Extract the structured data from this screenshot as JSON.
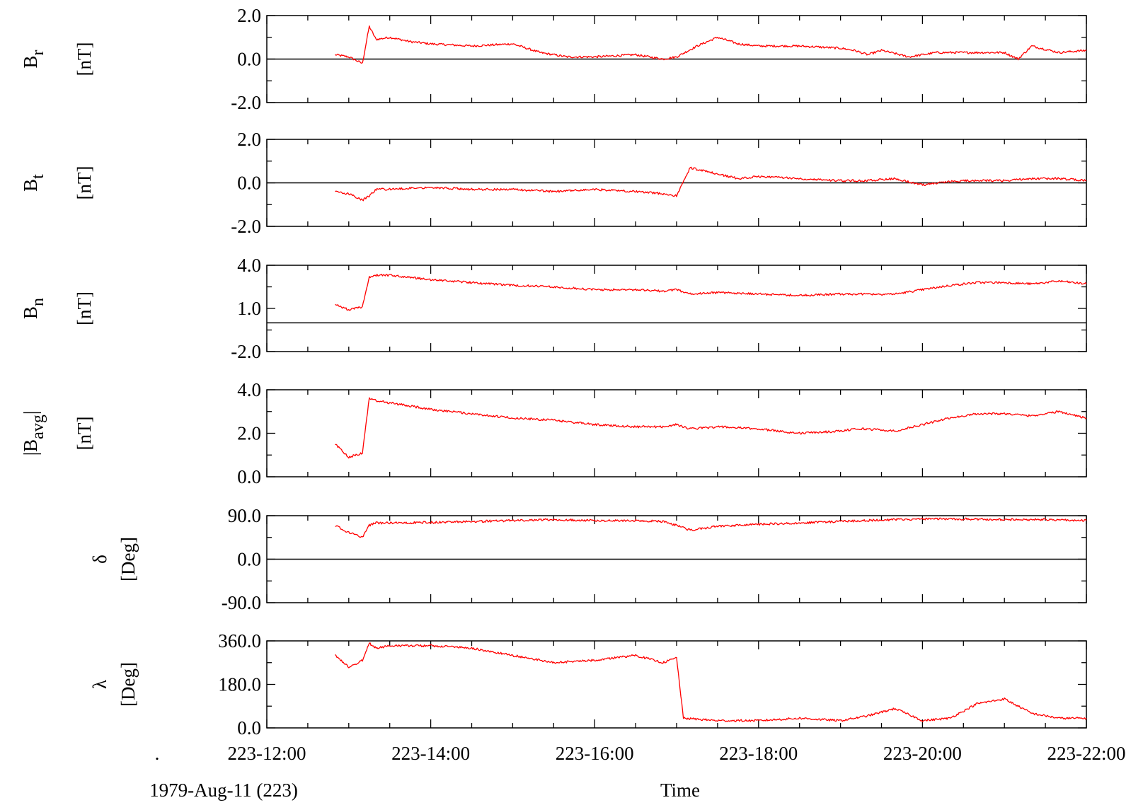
{
  "chart_data": {
    "type": "line",
    "trace_color": "#ff0000",
    "x_axis": {
      "label": "Time",
      "range": [
        "223-12:00",
        "223-22:00"
      ],
      "ticks": [
        "223-12:00",
        "223-14:00",
        "223-16:00",
        "223-18:00",
        "223-20:00",
        "223-22:00"
      ],
      "date_label": "1979-Aug-11 (223)",
      "marker": "."
    },
    "panels": [
      {
        "name": "Br",
        "label_main": "B",
        "label_sub": "r",
        "label_pre": "",
        "label_post": "",
        "unit": "[nT]",
        "ylim": [
          -2.0,
          2.0
        ],
        "ticks": [
          "2.0",
          "0.0",
          "-2.0"
        ],
        "zero_line": 0.0,
        "series": [
          {
            "x": [
              "223-12:50",
              "223-13:00",
              "223-13:10",
              "223-13:15",
              "223-13:20",
              "223-13:30",
              "223-13:45",
              "223-14:00",
              "223-14:30",
              "223-15:00",
              "223-15:20",
              "223-15:40",
              "223-16:00",
              "223-16:30",
              "223-16:50",
              "223-17:00",
              "223-17:15",
              "223-17:30",
              "223-17:45",
              "223-18:00",
              "223-18:30",
              "223-19:00",
              "223-19:10",
              "223-19:20",
              "223-19:30",
              "223-19:50",
              "223-20:10",
              "223-20:30",
              "223-20:45",
              "223-21:00",
              "223-21:10",
              "223-21:20",
              "223-21:40",
              "223-22:00"
            ],
            "y": [
              0.2,
              0.1,
              -0.2,
              1.5,
              0.9,
              1.0,
              0.8,
              0.7,
              0.6,
              0.7,
              0.3,
              0.1,
              0.1,
              0.2,
              0.0,
              0.1,
              0.6,
              1.0,
              0.7,
              0.6,
              0.6,
              0.5,
              0.4,
              0.2,
              0.4,
              0.1,
              0.3,
              0.3,
              0.3,
              0.3,
              0.0,
              0.6,
              0.3,
              0.4
            ]
          }
        ]
      },
      {
        "name": "Bt",
        "label_main": "B",
        "label_sub": "t",
        "label_pre": "",
        "label_post": "",
        "unit": "[nT]",
        "ylim": [
          -2.0,
          2.0
        ],
        "ticks": [
          "2.0",
          "0.0",
          "-2.0"
        ],
        "zero_line": 0.0,
        "series": [
          {
            "x": [
              "223-12:50",
              "223-13:00",
              "223-13:10",
              "223-13:15",
              "223-13:20",
              "223-13:30",
              "223-14:00",
              "223-14:30",
              "223-15:00",
              "223-15:30",
              "223-16:00",
              "223-16:30",
              "223-16:50",
              "223-17:00",
              "223-17:10",
              "223-17:30",
              "223-17:45",
              "223-18:00",
              "223-18:30",
              "223-19:00",
              "223-19:20",
              "223-19:40",
              "223-20:00",
              "223-20:10",
              "223-20:30",
              "223-21:00",
              "223-21:20",
              "223-21:40",
              "223-22:00"
            ],
            "y": [
              -0.4,
              -0.5,
              -0.8,
              -0.6,
              -0.3,
              -0.3,
              -0.2,
              -0.3,
              -0.3,
              -0.4,
              -0.3,
              -0.4,
              -0.5,
              -0.6,
              0.7,
              0.4,
              0.2,
              0.3,
              0.2,
              0.1,
              0.1,
              0.2,
              -0.1,
              0.0,
              0.1,
              0.1,
              0.2,
              0.2,
              0.1
            ]
          }
        ]
      },
      {
        "name": "Bn",
        "label_main": "B",
        "label_sub": "n",
        "label_pre": "",
        "label_post": "",
        "unit": "[nT]",
        "ylim": [
          -2.0,
          4.0
        ],
        "ticks": [
          "4.0",
          "1.0",
          "-2.0"
        ],
        "zero_line": 0.0,
        "series": [
          {
            "x": [
              "223-12:50",
              "223-13:00",
              "223-13:10",
              "223-13:15",
              "223-13:20",
              "223-13:30",
              "223-14:00",
              "223-14:30",
              "223-15:00",
              "223-15:30",
              "223-16:00",
              "223-16:30",
              "223-16:50",
              "223-17:00",
              "223-17:10",
              "223-17:30",
              "223-18:00",
              "223-18:30",
              "223-19:00",
              "223-19:10",
              "223-19:20",
              "223-19:40",
              "223-20:00",
              "223-20:20",
              "223-20:40",
              "223-21:00",
              "223-21:20",
              "223-21:40",
              "223-22:00"
            ],
            "y": [
              1.3,
              0.9,
              1.1,
              3.2,
              3.3,
              3.3,
              3.0,
              2.8,
              2.6,
              2.5,
              2.3,
              2.3,
              2.2,
              2.3,
              2.0,
              2.1,
              2.0,
              1.9,
              2.0,
              2.0,
              2.0,
              2.0,
              2.3,
              2.6,
              2.8,
              2.8,
              2.7,
              2.9,
              2.7
            ]
          }
        ]
      },
      {
        "name": "Bavg",
        "label_main": "B",
        "label_sub": "avg",
        "label_pre": "|",
        "label_post": "|",
        "unit": "[nT]",
        "ylim": [
          0.0,
          4.0
        ],
        "ticks": [
          "4.0",
          "2.0",
          "0.0"
        ],
        "zero_line": null,
        "series": [
          {
            "x": [
              "223-12:50",
              "223-13:00",
              "223-13:10",
              "223-13:15",
              "223-13:20",
              "223-13:30",
              "223-14:00",
              "223-14:30",
              "223-15:00",
              "223-15:30",
              "223-16:00",
              "223-16:30",
              "223-16:50",
              "223-17:00",
              "223-17:10",
              "223-17:30",
              "223-18:00",
              "223-18:30",
              "223-19:00",
              "223-19:10",
              "223-19:20",
              "223-19:40",
              "223-20:00",
              "223-20:20",
              "223-20:40",
              "223-21:00",
              "223-21:20",
              "223-21:40",
              "223-22:00"
            ],
            "y": [
              1.5,
              0.9,
              1.1,
              3.6,
              3.5,
              3.4,
              3.1,
              2.9,
              2.7,
              2.6,
              2.4,
              2.3,
              2.3,
              2.4,
              2.2,
              2.3,
              2.2,
              2.0,
              2.1,
              2.2,
              2.2,
              2.1,
              2.4,
              2.7,
              2.9,
              2.9,
              2.8,
              3.0,
              2.7
            ]
          }
        ]
      },
      {
        "name": "delta",
        "label_main": "δ",
        "label_sub": "",
        "label_pre": "",
        "label_post": "",
        "unit": "[Deg]",
        "ylim": [
          -90.0,
          90.0
        ],
        "ticks": [
          "90.0",
          "0.0",
          "-90.0"
        ],
        "zero_line": 0.0,
        "series": [
          {
            "x": [
              "223-12:50",
              "223-13:00",
              "223-13:10",
              "223-13:15",
              "223-13:20",
              "223-13:30",
              "223-14:00",
              "223-14:30",
              "223-15:00",
              "223-15:30",
              "223-16:00",
              "223-16:30",
              "223-16:50",
              "223-17:00",
              "223-17:10",
              "223-17:30",
              "223-18:00",
              "223-18:30",
              "223-19:00",
              "223-19:20",
              "223-19:40",
              "223-20:00",
              "223-20:30",
              "223-21:00",
              "223-21:30",
              "223-22:00"
            ],
            "y": [
              70,
              55,
              45,
              70,
              75,
              75,
              76,
              78,
              80,
              82,
              80,
              80,
              78,
              70,
              60,
              68,
              72,
              75,
              78,
              80,
              82,
              83,
              83,
              82,
              82,
              80
            ]
          }
        ]
      },
      {
        "name": "lambda",
        "label_main": "λ",
        "label_sub": "",
        "label_pre": "",
        "label_post": "",
        "unit": "[Deg]",
        "ylim": [
          0.0,
          360.0
        ],
        "ticks": [
          "360.0",
          "180.0",
          "0.0"
        ],
        "zero_line": null,
        "series": [
          {
            "x": [
              "223-12:50",
              "223-13:00",
              "223-13:10",
              "223-13:15",
              "223-13:20",
              "223-13:30",
              "223-14:00",
              "223-14:30",
              "223-15:00",
              "223-15:30",
              "223-16:00",
              "223-16:30",
              "223-16:50",
              "223-17:00",
              "223-17:05",
              "223-17:30",
              "223-18:00",
              "223-18:30",
              "223-19:00",
              "223-19:20",
              "223-19:40",
              "223-20:00",
              "223-20:20",
              "223-20:40",
              "223-21:00",
              "223-21:20",
              "223-21:40",
              "223-22:00"
            ],
            "y": [
              300,
              250,
              280,
              350,
              330,
              340,
              340,
              330,
              300,
              270,
              280,
              300,
              270,
              290,
              40,
              30,
              30,
              40,
              30,
              50,
              80,
              30,
              40,
              100,
              120,
              60,
              40,
              40
            ]
          }
        ]
      }
    ]
  }
}
